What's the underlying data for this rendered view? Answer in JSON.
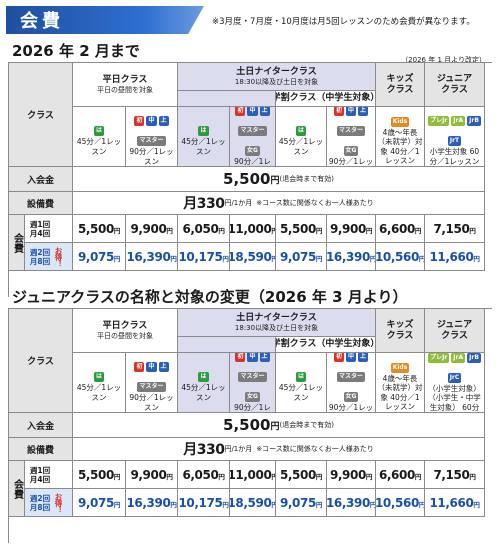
{
  "header": {
    "title": "会費",
    "note": "※3月度・7月度・10月度は月5回レッスンのため会費が異なります。"
  },
  "sections": [
    {
      "title": "2026 年 2 月まで",
      "subnote": "（2026 年 1 月より改定）",
      "head": {
        "class_label": "クラス",
        "heijitsu": {
          "name": "平日クラス",
          "sub": "平日の昼間を対象"
        },
        "donichi": {
          "name": "土日ナイタークラス",
          "sub": "18:30以降及び土日を対象"
        },
        "gakuwari": {
          "name": "学割クラス（中学生対象）"
        },
        "kids": {
          "name": "キッズ",
          "name2": "クラス"
        },
        "junior": {
          "name": "ジュニア",
          "name2": "クラス"
        }
      },
      "cols": [
        {
          "icons": [
            "は"
          ],
          "desc": "45分／1レッスン"
        },
        {
          "icons": [
            "初",
            "中",
            "上",
            "マスター"
          ],
          "desc": "90分／1レッスン"
        },
        {
          "icons": [
            "は"
          ],
          "desc": "45分／1レッスン"
        },
        {
          "icons": [
            "初",
            "中",
            "上",
            "マスター",
            "女G"
          ],
          "desc": "90分／1レッスン"
        },
        {
          "icons": [
            "は"
          ],
          "desc": "45分／1レッスン"
        },
        {
          "icons": [
            "初",
            "中",
            "上",
            "マスター",
            "女G"
          ],
          "desc": "90分／1レッスン"
        },
        {
          "icons": [
            "Kids"
          ],
          "desc": "4歳〜年長（未就学）対象 40分／1レッスン"
        },
        {
          "icons": [
            "プレJr",
            "JrA",
            "JrB",
            "JrT"
          ],
          "desc": "小学生対象 60分／1レッスン"
        }
      ],
      "nyukai": {
        "label": "入会金",
        "value": "5,500",
        "unit": "円",
        "note": "(退会時まで有効)"
      },
      "setsubi": {
        "label": "設備費",
        "value": "月330",
        "unit": "円/1か月",
        "note": "※コース数に関係なくお一人様あたり"
      },
      "kaihi_label": "会費",
      "week1": {
        "label": "週1回 月4回",
        "values": [
          "5,500",
          "9,900",
          "6,050",
          "11,000",
          "5,500",
          "9,900",
          "6,600",
          "7,150"
        ]
      },
      "week2": {
        "label": "週2回 月8回",
        "otoku": "お得！",
        "values": [
          "9,075",
          "16,390",
          "10,175",
          "18,590",
          "9,075",
          "16,390",
          "10,560",
          "11,660"
        ]
      },
      "yen": "円"
    },
    {
      "title": "ジュニアクラスの名称と対象の変更（2026 年 3 月より）",
      "subnote": "",
      "head": {
        "class_label": "クラス",
        "heijitsu": {
          "name": "平日クラス",
          "sub": "平日の昼間を対象"
        },
        "donichi": {
          "name": "土日ナイタークラス",
          "sub": "18:30以降及び土日を対象"
        },
        "gakuwari": {
          "name": "学割クラス（中学生対象）"
        },
        "kids": {
          "name": "キッズ",
          "name2": "クラス"
        },
        "junior": {
          "name": "ジュニア",
          "name2": "クラス"
        }
      },
      "cols": [
        {
          "icons": [
            "は"
          ],
          "desc": "45分／1レッスン"
        },
        {
          "icons": [
            "初",
            "中",
            "上",
            "マスター"
          ],
          "desc": "90分／1レッスン"
        },
        {
          "icons": [
            "は"
          ],
          "desc": "45分／1レッスン"
        },
        {
          "icons": [
            "初",
            "中",
            "上",
            "マスター",
            "女G"
          ],
          "desc": "90分／1レッスン"
        },
        {
          "icons": [
            "は"
          ],
          "desc": "45分／1レッスン"
        },
        {
          "icons": [
            "初",
            "中",
            "上",
            "マスター",
            "女G"
          ],
          "desc": "90分／1レッスン"
        },
        {
          "icons": [
            "Kids"
          ],
          "desc": "4歳〜年長（未就学）対象 40分／1レッスン"
        },
        {
          "icons": [
            "プレJr",
            "JrA",
            "JrB",
            "JrC"
          ],
          "desc": "（小学生対象）（小学生・中学生対象） 60分／1レッスン"
        }
      ],
      "nyukai": {
        "label": "入会金",
        "value": "5,500",
        "unit": "円",
        "note": "(退会時まで有効)"
      },
      "setsubi": {
        "label": "設備費",
        "value": "月330",
        "unit": "円/1か月",
        "note": "※コース数に関係なくお一人様あたり"
      },
      "kaihi_label": "会費",
      "week1": {
        "label": "週1回 月4回",
        "values": [
          "5,500",
          "9,900",
          "6,050",
          "11,000",
          "5,500",
          "9,900",
          "6,600",
          "7,150"
        ]
      },
      "week2": {
        "label": "週2回 月8回",
        "otoku": "お得！",
        "values": [
          "9,075",
          "16,390",
          "10,175",
          "18,590",
          "9,075",
          "16,390",
          "10,560",
          "11,660"
        ]
      },
      "yen": "円"
    }
  ]
}
